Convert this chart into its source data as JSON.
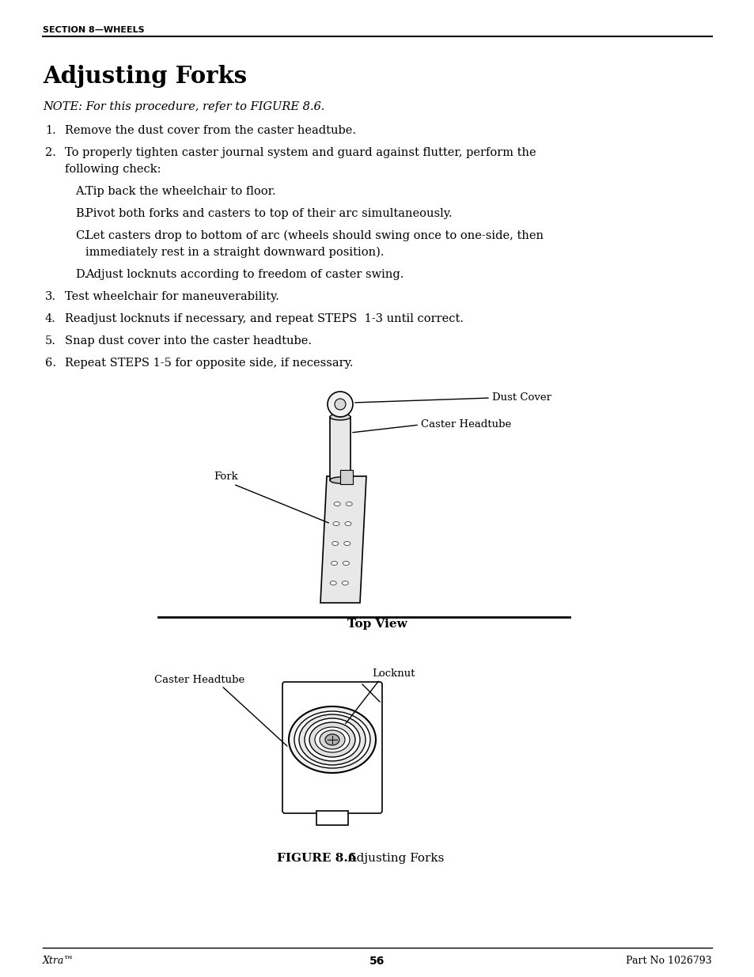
{
  "page_title": "SECTION 8—WHEELS",
  "section_title": "Adjusting Forks",
  "note": "NOTE: For this procedure, refer to FIGURE 8.6.",
  "step1": "Remove the dust cover from the caster headtube.",
  "step2_line1": "To properly tighten caster journal system and guard against flutter, perform the",
  "step2_line2": "following check:",
  "subA": "Tip back the wheelchair to floor.",
  "subB": "Pivot both forks and casters to top of their arc simultaneously.",
  "subC_line1": "Let casters drop to bottom of arc (wheels should swing once to one-side, then",
  "subC_line2": "immediately rest in a straight downward position).",
  "subD": "Adjust locknuts according to freedom of caster swing.",
  "step3": "Test wheelchair for maneuverability.",
  "step4": "Readjust locknuts if necessary, and repeat STEPS  1-3 until correct.",
  "step5": "Snap dust cover into the caster headtube.",
  "step6": "Repeat STEPS 1-5 for opposite side, if necessary.",
  "label_dust_cover": "Dust Cover",
  "label_caster_headtube": "Caster Headtube",
  "label_fork": "Fork",
  "label_top_view": "Top View",
  "label_caster_headtube2": "Caster Headtube",
  "label_locknut": "Locknut",
  "fig_caption_bold": "FIGURE 8.6",
  "fig_caption_normal": "   Adjusting Forks",
  "footer_left": "Xtra™",
  "footer_center": "56",
  "footer_right": "Part No 1026793",
  "bg_color": "#ffffff",
  "text_color": "#000000"
}
